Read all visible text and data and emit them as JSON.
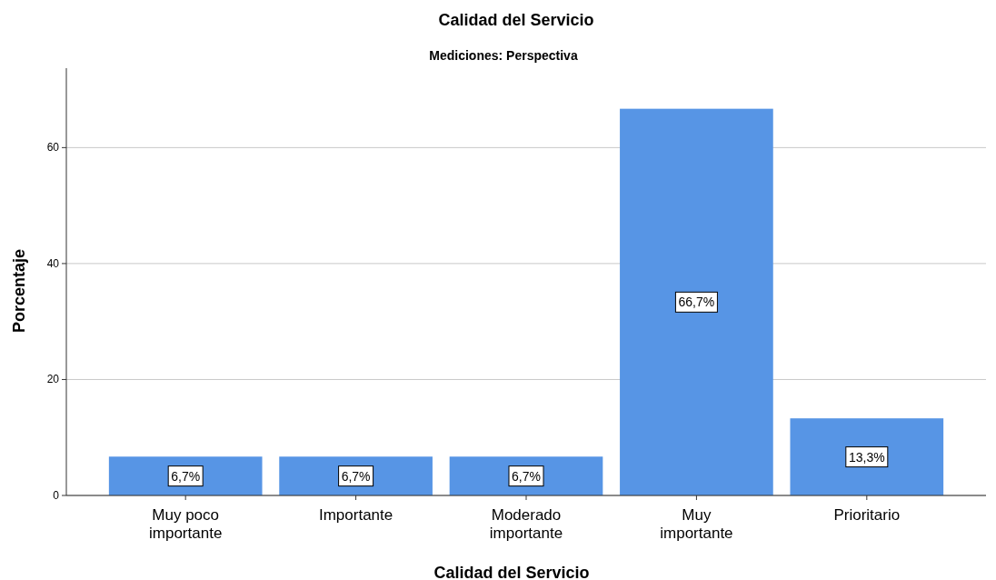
{
  "chart_data": {
    "type": "bar",
    "title": "Calidad del Servicio",
    "subtitle": "Mediciones: Perspectiva",
    "xlabel": "Calidad del Servicio",
    "ylabel": "Porcentaje",
    "categories": [
      "Muy poco importante",
      "Importante",
      "Moderado importante",
      "Muy importante",
      "Prioritario"
    ],
    "values": [
      6.7,
      6.7,
      6.7,
      66.7,
      13.3
    ],
    "value_labels": [
      "6,7%",
      "6,7%",
      "6,7%",
      "66,7%",
      "13,3%"
    ],
    "color": "#5795e5",
    "ylim": [
      0,
      73.7
    ],
    "yticks": [
      0,
      20,
      40,
      60
    ],
    "grid": "y"
  }
}
